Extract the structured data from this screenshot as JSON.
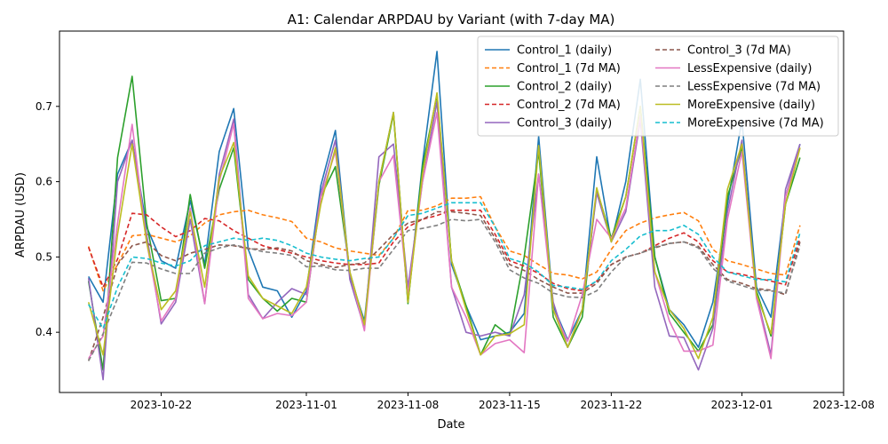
{
  "chart_data": {
    "type": "line",
    "title": "A1: Calendar ARPDAU by Variant (with 7-day MA)",
    "xlabel": "Date",
    "ylabel": "ARPDAU (USD)",
    "x_start": "2023-10-17",
    "x_ticks": [
      "2023-10-22",
      "2023-11-01",
      "2023-11-08",
      "2023-11-15",
      "2023-11-22",
      "2023-12-01",
      "2023-12-08"
    ],
    "y_ticks": [
      "0.4",
      "0.5",
      "0.6",
      "0.7"
    ],
    "xlim": [
      "2023-10-15",
      "2023-12-08"
    ],
    "ylim": [
      0.32,
      0.8
    ],
    "grid": false,
    "legend_position": "top-right",
    "legend_columns": 2,
    "x": [
      "2023-10-17",
      "2023-10-18",
      "2023-10-19",
      "2023-10-20",
      "2023-10-21",
      "2023-10-22",
      "2023-10-23",
      "2023-10-24",
      "2023-10-25",
      "2023-10-26",
      "2023-10-27",
      "2023-10-28",
      "2023-10-29",
      "2023-10-30",
      "2023-10-31",
      "2023-11-01",
      "2023-11-02",
      "2023-11-03",
      "2023-11-04",
      "2023-11-05",
      "2023-11-06",
      "2023-11-07",
      "2023-11-08",
      "2023-11-09",
      "2023-11-10",
      "2023-11-11",
      "2023-11-12",
      "2023-11-13",
      "2023-11-14",
      "2023-11-15",
      "2023-11-16",
      "2023-11-17",
      "2023-11-18",
      "2023-11-19",
      "2023-11-20",
      "2023-11-21",
      "2023-11-22",
      "2023-11-23",
      "2023-11-24",
      "2023-11-25",
      "2023-11-26",
      "2023-11-27",
      "2023-11-28",
      "2023-11-29",
      "2023-11-30",
      "2023-12-01",
      "2023-12-02",
      "2023-12-03",
      "2023-12-04",
      "2023-12-05"
    ],
    "series": [
      {
        "name": "Control_1 (daily)",
        "color": "#1f77b4",
        "dash": "solid",
        "values": [
          0.474,
          0.44,
          0.61,
          0.655,
          0.54,
          0.495,
          0.485,
          0.575,
          0.49,
          0.64,
          0.697,
          0.51,
          0.46,
          0.455,
          0.42,
          0.455,
          0.595,
          0.668,
          0.475,
          0.415,
          0.6,
          0.692,
          0.44,
          0.625,
          0.773,
          0.49,
          0.435,
          0.39,
          0.395,
          0.4,
          0.425,
          0.66,
          0.435,
          0.39,
          0.43,
          0.633,
          0.52,
          0.6,
          0.736,
          0.5,
          0.43,
          0.41,
          0.38,
          0.44,
          0.57,
          0.682,
          0.46,
          0.42,
          0.58,
          0.65
        ]
      },
      {
        "name": "Control_1 (7d MA)",
        "color": "#ff7f0e",
        "dash": "dashed",
        "values": [
          0.514,
          0.455,
          0.49,
          0.528,
          0.53,
          0.525,
          0.52,
          0.528,
          0.545,
          0.556,
          0.56,
          0.562,
          0.556,
          0.552,
          0.547,
          0.525,
          0.52,
          0.512,
          0.508,
          0.505,
          0.502,
          0.525,
          0.562,
          0.562,
          0.568,
          0.578,
          0.578,
          0.58,
          0.54,
          0.508,
          0.502,
          0.49,
          0.478,
          0.476,
          0.471,
          0.48,
          0.51,
          0.535,
          0.545,
          0.552,
          0.556,
          0.559,
          0.548,
          0.51,
          0.495,
          0.49,
          0.484,
          0.478,
          0.476,
          0.542
        ]
      },
      {
        "name": "Control_2 (daily)",
        "color": "#2ca02c",
        "dash": "solid",
        "values": [
          0.468,
          0.35,
          0.632,
          0.74,
          0.545,
          0.442,
          0.445,
          0.583,
          0.485,
          0.59,
          0.645,
          0.47,
          0.445,
          0.428,
          0.445,
          0.44,
          0.58,
          0.62,
          0.48,
          0.41,
          0.595,
          0.69,
          0.438,
          0.62,
          0.715,
          0.495,
          0.435,
          0.37,
          0.41,
          0.395,
          0.5,
          0.64,
          0.42,
          0.38,
          0.42,
          0.59,
          0.525,
          0.58,
          0.7,
          0.5,
          0.425,
          0.4,
          0.375,
          0.41,
          0.58,
          0.645,
          0.455,
          0.395,
          0.57,
          0.632
        ]
      },
      {
        "name": "Control_2 (7d MA)",
        "color": "#d62728",
        "dash": "dashed",
        "values": [
          0.513,
          0.46,
          0.497,
          0.558,
          0.556,
          0.54,
          0.527,
          0.535,
          0.551,
          0.548,
          0.535,
          0.525,
          0.515,
          0.51,
          0.505,
          0.5,
          0.495,
          0.492,
          0.49,
          0.49,
          0.492,
          0.52,
          0.54,
          0.55,
          0.555,
          0.562,
          0.562,
          0.562,
          0.53,
          0.495,
          0.488,
          0.478,
          0.465,
          0.458,
          0.455,
          0.468,
          0.49,
          0.5,
          0.505,
          0.515,
          0.525,
          0.532,
          0.52,
          0.495,
          0.48,
          0.477,
          0.472,
          0.468,
          0.463,
          0.525
        ]
      },
      {
        "name": "Control_3 (daily)",
        "color": "#9467bd",
        "dash": "solid",
        "values": [
          0.472,
          0.337,
          0.6,
          0.655,
          0.53,
          0.411,
          0.44,
          0.55,
          0.438,
          0.61,
          0.683,
          0.45,
          0.418,
          0.44,
          0.458,
          0.45,
          0.585,
          0.655,
          0.47,
          0.405,
          0.633,
          0.65,
          0.46,
          0.6,
          0.706,
          0.46,
          0.4,
          0.395,
          0.4,
          0.395,
          0.45,
          0.61,
          0.44,
          0.38,
          0.43,
          0.585,
          0.52,
          0.56,
          0.682,
          0.46,
          0.395,
          0.393,
          0.35,
          0.405,
          0.56,
          0.655,
          0.45,
          0.37,
          0.59,
          0.65
        ]
      },
      {
        "name": "Control_3 (7d MA)",
        "color": "#8c564b",
        "dash": "dashed",
        "values": [
          0.362,
          0.42,
          0.49,
          0.515,
          0.52,
          0.502,
          0.495,
          0.505,
          0.51,
          0.516,
          0.515,
          0.511,
          0.51,
          0.512,
          0.508,
          0.495,
          0.49,
          0.486,
          0.49,
          0.492,
          0.51,
          0.53,
          0.545,
          0.55,
          0.56,
          0.56,
          0.558,
          0.555,
          0.525,
          0.49,
          0.482,
          0.47,
          0.46,
          0.452,
          0.452,
          0.465,
          0.49,
          0.5,
          0.505,
          0.512,
          0.518,
          0.52,
          0.514,
          0.49,
          0.47,
          0.465,
          0.458,
          0.456,
          0.45,
          0.52
        ]
      },
      {
        "name": "LessExpensive (daily)",
        "color": "#e377c2",
        "dash": "solid",
        "values": [
          0.365,
          0.395,
          0.545,
          0.676,
          0.52,
          0.415,
          0.445,
          0.565,
          0.438,
          0.6,
          0.677,
          0.445,
          0.418,
          0.425,
          0.422,
          0.44,
          0.58,
          0.64,
          0.48,
          0.402,
          0.6,
          0.635,
          0.45,
          0.6,
          0.692,
          0.46,
          0.42,
          0.37,
          0.385,
          0.39,
          0.373,
          0.61,
          0.43,
          0.388,
          0.45,
          0.55,
          0.525,
          0.565,
          0.687,
          0.48,
          0.415,
          0.375,
          0.375,
          0.383,
          0.55,
          0.64,
          0.445,
          0.365,
          0.58,
          0.645
        ]
      },
      {
        "name": "LessExpensive (7d MA)",
        "color": "#7f7f7f",
        "dash": "dashed",
        "values": [
          0.362,
          0.398,
          0.445,
          0.493,
          0.492,
          0.484,
          0.478,
          0.478,
          0.505,
          0.512,
          0.516,
          0.512,
          0.507,
          0.505,
          0.502,
          0.487,
          0.488,
          0.483,
          0.482,
          0.485,
          0.485,
          0.51,
          0.535,
          0.538,
          0.542,
          0.55,
          0.548,
          0.55,
          0.52,
          0.483,
          0.472,
          0.465,
          0.452,
          0.447,
          0.446,
          0.455,
          0.48,
          0.5,
          0.505,
          0.513,
          0.518,
          0.52,
          0.512,
          0.485,
          0.468,
          0.462,
          0.456,
          0.455,
          0.452,
          0.515
        ]
      },
      {
        "name": "MoreExpensive (daily)",
        "color": "#bcbd22",
        "dash": "solid",
        "values": [
          0.44,
          0.37,
          0.53,
          0.65,
          0.52,
          0.43,
          0.455,
          0.56,
          0.46,
          0.605,
          0.652,
          0.475,
          0.445,
          0.435,
          0.425,
          0.46,
          0.57,
          0.645,
          0.48,
          0.41,
          0.6,
          0.692,
          0.44,
          0.61,
          0.718,
          0.495,
          0.43,
          0.37,
          0.395,
          0.398,
          0.41,
          0.648,
          0.43,
          0.38,
          0.43,
          0.592,
          0.52,
          0.58,
          0.7,
          0.48,
          0.43,
          0.405,
          0.365,
          0.42,
          0.59,
          0.65,
          0.45,
          0.398,
          0.57,
          0.645
        ]
      },
      {
        "name": "MoreExpensive (7d MA)",
        "color": "#17becf",
        "dash": "dashed",
        "values": [
          0.437,
          0.405,
          0.46,
          0.5,
          0.498,
          0.492,
          0.488,
          0.495,
          0.515,
          0.52,
          0.525,
          0.522,
          0.525,
          0.522,
          0.515,
          0.505,
          0.5,
          0.497,
          0.495,
          0.498,
          0.5,
          0.525,
          0.555,
          0.558,
          0.565,
          0.572,
          0.572,
          0.572,
          0.54,
          0.498,
          0.492,
          0.48,
          0.462,
          0.46,
          0.457,
          0.468,
          0.495,
          0.51,
          0.528,
          0.535,
          0.535,
          0.542,
          0.53,
          0.5,
          0.48,
          0.475,
          0.47,
          0.47,
          0.467,
          0.532
        ]
      }
    ]
  }
}
